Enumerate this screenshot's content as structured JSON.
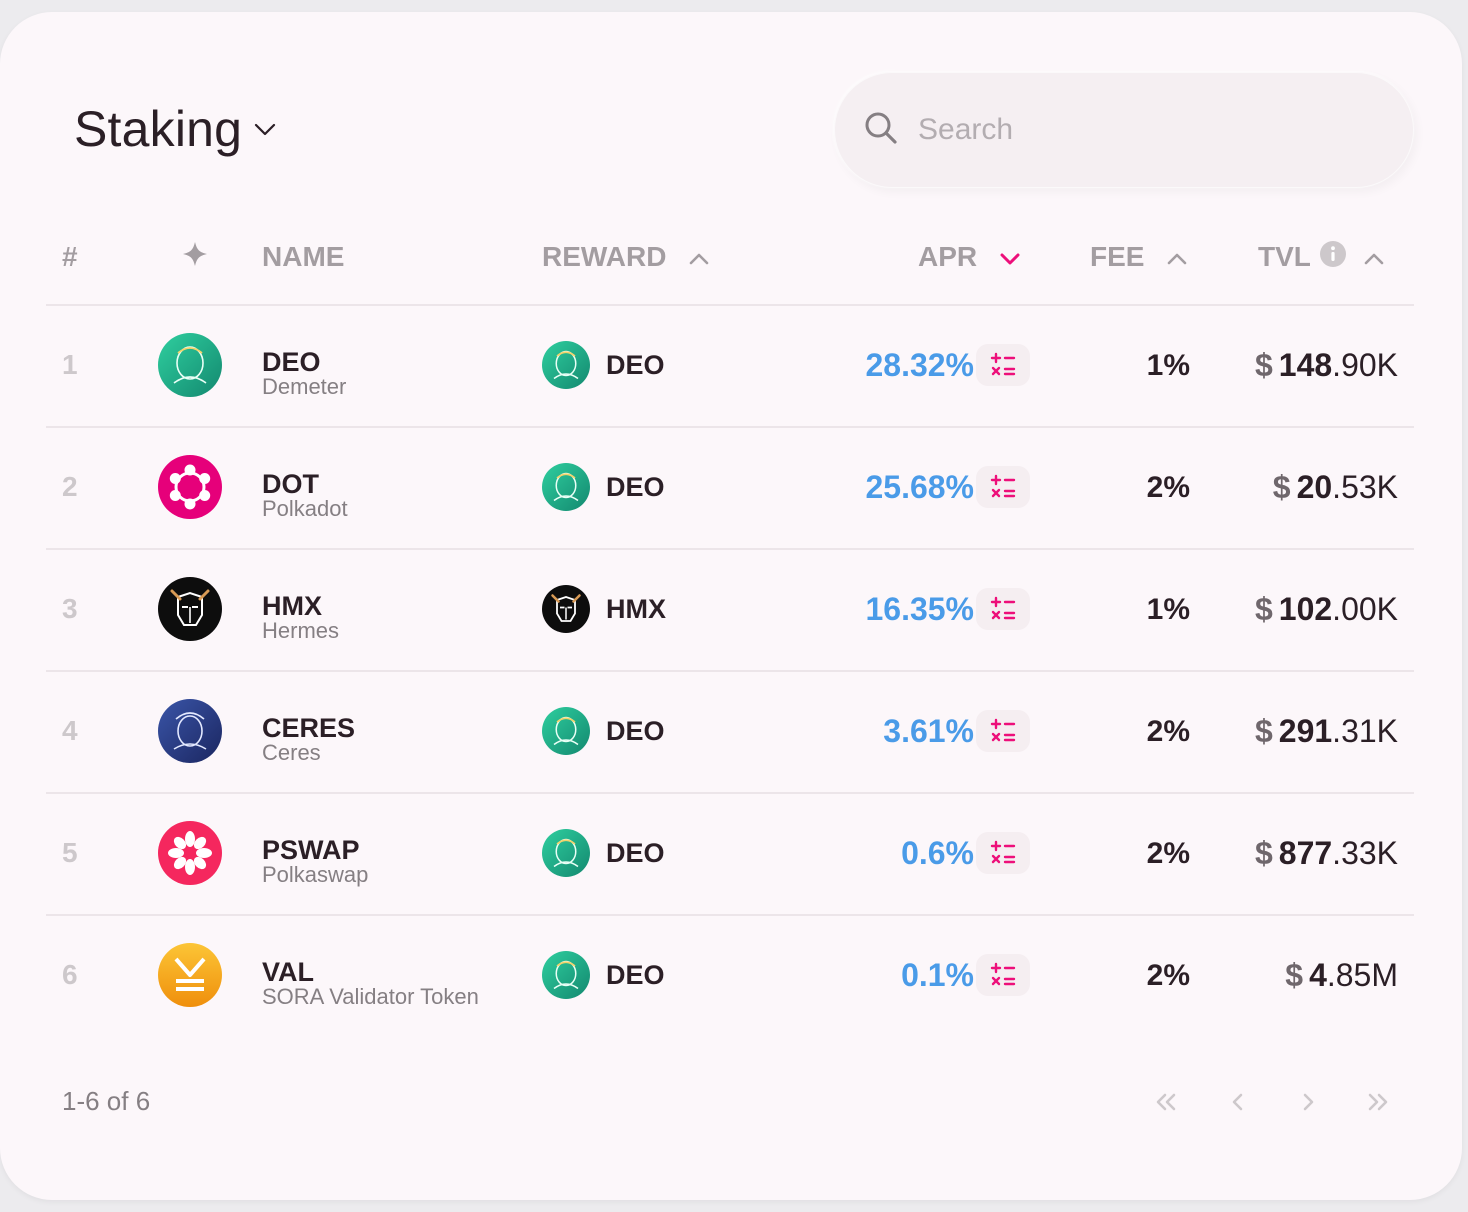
{
  "header": {
    "title": "Staking",
    "search_placeholder": "Search"
  },
  "columns": {
    "num": "#",
    "icon": "",
    "name": "NAME",
    "reward": "REWARD",
    "apr": "APR",
    "fee": "FEE",
    "tvl": "TVL"
  },
  "sorting": {
    "reward": "asc",
    "apr": "desc",
    "fee": "asc",
    "tvl": "asc",
    "active": "apr"
  },
  "colors": {
    "accent": "#ed0f7a",
    "apr_blue": "#4a9be8",
    "deo_green": "#1dab85",
    "dot_pink": "#e6007a",
    "pswap_red": "#f5275e",
    "val_gold": "#f5a614",
    "ceres_navy": "#2b3a7e"
  },
  "rows": [
    {
      "num": "1",
      "symbol": "DEO",
      "name": "Demeter",
      "icon": "demeter-icon",
      "reward_symbol": "DEO",
      "reward_icon": "demeter-icon",
      "apr": "28.32%",
      "fee": "1%",
      "tvl_currency": "$",
      "tvl_int": "148",
      "tvl_dec": ".90K"
    },
    {
      "num": "2",
      "symbol": "DOT",
      "name": "Polkadot",
      "icon": "polkadot-icon",
      "reward_symbol": "DEO",
      "reward_icon": "demeter-icon",
      "apr": "25.68%",
      "fee": "2%",
      "tvl_currency": "$",
      "tvl_int": "20",
      "tvl_dec": ".53K"
    },
    {
      "num": "3",
      "symbol": "HMX",
      "name": "Hermes",
      "icon": "hermes-icon",
      "reward_symbol": "HMX",
      "reward_icon": "hermes-icon",
      "apr": "16.35%",
      "fee": "1%",
      "tvl_currency": "$",
      "tvl_int": "102",
      "tvl_dec": ".00K"
    },
    {
      "num": "4",
      "symbol": "CERES",
      "name": "Ceres",
      "icon": "ceres-icon",
      "reward_symbol": "DEO",
      "reward_icon": "demeter-icon",
      "apr": "3.61%",
      "fee": "2%",
      "tvl_currency": "$",
      "tvl_int": "291",
      "tvl_dec": ".31K"
    },
    {
      "num": "5",
      "symbol": "PSWAP",
      "name": "Polkaswap",
      "icon": "polkaswap-icon",
      "reward_symbol": "DEO",
      "reward_icon": "demeter-icon",
      "apr": "0.6%",
      "fee": "2%",
      "tvl_currency": "$",
      "tvl_int": "877",
      "tvl_dec": ".33K"
    },
    {
      "num": "6",
      "symbol": "VAL",
      "name": "SORA Validator Token",
      "icon": "val-icon",
      "reward_symbol": "DEO",
      "reward_icon": "demeter-icon",
      "apr": "0.1%",
      "fee": "2%",
      "tvl_currency": "$",
      "tvl_int": "4",
      "tvl_dec": ".85M"
    }
  ],
  "footer": {
    "count": "1-6 of 6"
  }
}
